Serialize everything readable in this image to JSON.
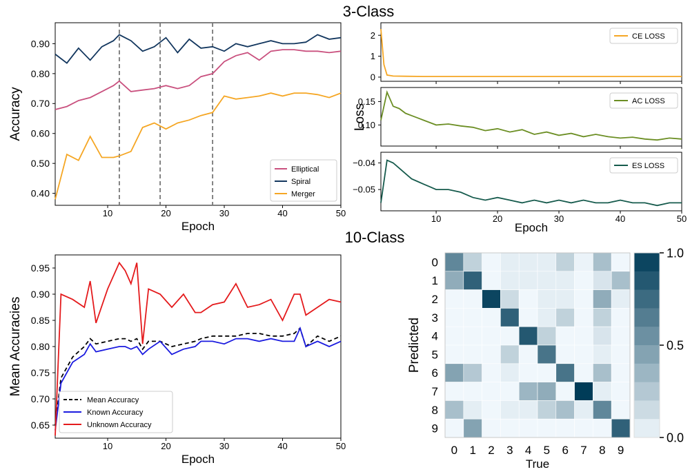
{
  "section_titles": [
    "3-Class",
    "10-Class"
  ],
  "chart_data": [
    {
      "id": "acc3",
      "type": "line",
      "title": "",
      "xlabel": "Epoch",
      "ylabel": "Accuracy",
      "xlim": [
        1,
        50
      ],
      "ylim": [
        0.36,
        0.97
      ],
      "xticks": [
        10,
        20,
        30,
        40,
        50
      ],
      "yticks": [
        0.4,
        0.5,
        0.6,
        0.7,
        0.8,
        0.9
      ],
      "ytick_labels": [
        "0.40",
        "0.50",
        "0.60",
        "0.70",
        "0.80",
        "0.90"
      ],
      "vlines": [
        12,
        19,
        28
      ],
      "legend_position": "lower-right",
      "x": [
        1,
        3,
        5,
        7,
        9,
        11,
        12,
        14,
        16,
        18,
        20,
        22,
        24,
        26,
        28,
        30,
        32,
        34,
        36,
        38,
        40,
        42,
        44,
        46,
        48,
        50
      ],
      "series": [
        {
          "name": "Elliptical",
          "color": "#c9507e",
          "values": [
            0.68,
            0.69,
            0.71,
            0.72,
            0.74,
            0.76,
            0.775,
            0.74,
            0.745,
            0.75,
            0.76,
            0.75,
            0.76,
            0.79,
            0.8,
            0.84,
            0.86,
            0.87,
            0.845,
            0.875,
            0.88,
            0.88,
            0.875,
            0.875,
            0.87,
            0.875
          ]
        },
        {
          "name": "Spiral",
          "color": "#12365e",
          "values": [
            0.865,
            0.835,
            0.885,
            0.845,
            0.89,
            0.91,
            0.93,
            0.91,
            0.875,
            0.89,
            0.92,
            0.87,
            0.915,
            0.885,
            0.89,
            0.875,
            0.9,
            0.89,
            0.9,
            0.91,
            0.9,
            0.9,
            0.905,
            0.93,
            0.915,
            0.92
          ]
        },
        {
          "name": "Merger",
          "color": "#f5a623",
          "values": [
            0.38,
            0.53,
            0.51,
            0.59,
            0.52,
            0.52,
            0.525,
            0.54,
            0.62,
            0.635,
            0.615,
            0.635,
            0.645,
            0.66,
            0.67,
            0.725,
            0.715,
            0.72,
            0.725,
            0.735,
            0.725,
            0.735,
            0.735,
            0.73,
            0.72,
            0.735
          ]
        }
      ]
    },
    {
      "id": "loss3",
      "type": "line",
      "title": "",
      "xlabel": "Epoch",
      "ylabel": "Loss",
      "xlim": [
        1,
        50
      ],
      "xticks": [
        10,
        20,
        30,
        40,
        50
      ],
      "panels": [
        {
          "name": "CE LOSS",
          "color": "#f5a623",
          "ylim": [
            -0.2,
            2.6
          ],
          "yticks": [
            0,
            1,
            2
          ],
          "ytick_labels": [
            "0",
            "1",
            "2"
          ],
          "x": [
            1,
            1.5,
            2,
            3,
            5,
            8,
            10,
            15,
            20,
            25,
            30,
            35,
            40,
            45,
            50
          ],
          "values": [
            2.3,
            0.6,
            0.1,
            0.05,
            0.04,
            0.03,
            0.03,
            0.03,
            0.03,
            0.03,
            0.03,
            0.03,
            0.03,
            0.03,
            0.03
          ]
        },
        {
          "name": "AC LOSS",
          "color": "#6b8e23",
          "ylim": [
            0.055,
            0.18
          ],
          "yticks": [
            0.1,
            0.15
          ],
          "ytick_labels": [
            "0.10",
            "0.15"
          ],
          "x": [
            1,
            2,
            3,
            4,
            5,
            6,
            7,
            8,
            9,
            10,
            12,
            14,
            16,
            18,
            20,
            22,
            24,
            26,
            28,
            30,
            32,
            34,
            36,
            38,
            40,
            42,
            44,
            46,
            48,
            50
          ],
          "values": [
            0.11,
            0.17,
            0.14,
            0.135,
            0.125,
            0.12,
            0.115,
            0.11,
            0.105,
            0.1,
            0.102,
            0.098,
            0.095,
            0.088,
            0.092,
            0.085,
            0.09,
            0.08,
            0.085,
            0.078,
            0.082,
            0.075,
            0.08,
            0.075,
            0.072,
            0.074,
            0.07,
            0.068,
            0.072,
            0.07
          ]
        },
        {
          "name": "ES LOSS",
          "color": "#155a4c",
          "ylim": [
            -0.058,
            -0.036
          ],
          "yticks": [
            -0.05,
            -0.04
          ],
          "ytick_labels": [
            "−0.05",
            "−0.04"
          ],
          "x": [
            1,
            2,
            3,
            4,
            5,
            6,
            7,
            8,
            9,
            10,
            12,
            14,
            16,
            18,
            20,
            22,
            24,
            26,
            28,
            30,
            32,
            34,
            36,
            38,
            40,
            42,
            44,
            46,
            48,
            50
          ],
          "values": [
            -0.055,
            -0.039,
            -0.04,
            -0.042,
            -0.044,
            -0.046,
            -0.047,
            -0.048,
            -0.049,
            -0.05,
            -0.05,
            -0.051,
            -0.053,
            -0.054,
            -0.053,
            -0.054,
            -0.055,
            -0.054,
            -0.055,
            -0.054,
            -0.055,
            -0.054,
            -0.055,
            -0.055,
            -0.054,
            -0.055,
            -0.055,
            -0.056,
            -0.055,
            -0.055
          ]
        }
      ]
    },
    {
      "id": "acc10",
      "type": "line",
      "title": "",
      "xlabel": "Epoch",
      "ylabel": "Mean Accuracies",
      "xlim": [
        1,
        50
      ],
      "ylim": [
        0.625,
        0.975
      ],
      "xticks": [
        10,
        20,
        30,
        40,
        50
      ],
      "yticks": [
        0.65,
        0.7,
        0.75,
        0.8,
        0.85,
        0.9,
        0.95
      ],
      "ytick_labels": [
        "0.65",
        "0.70",
        "0.75",
        "0.80",
        "0.85",
        "0.90",
        "0.95"
      ],
      "legend_position": "lower-left",
      "x": [
        1,
        2,
        4,
        6,
        7,
        8,
        10,
        12,
        13,
        14,
        15,
        16,
        17,
        19,
        21,
        23,
        25,
        26,
        28,
        30,
        32,
        34,
        36,
        38,
        40,
        42,
        43,
        44,
        46,
        48,
        50
      ],
      "series": [
        {
          "name": "Mean Accuracy",
          "color": "#000000",
          "dash": "6,4",
          "values": [
            0.65,
            0.74,
            0.78,
            0.8,
            0.815,
            0.805,
            0.81,
            0.815,
            0.815,
            0.81,
            0.815,
            0.795,
            0.81,
            0.81,
            0.8,
            0.805,
            0.81,
            0.815,
            0.82,
            0.82,
            0.82,
            0.825,
            0.825,
            0.82,
            0.82,
            0.825,
            0.835,
            0.8,
            0.82,
            0.81,
            0.82
          ]
        },
        {
          "name": "Known Accuracy",
          "color": "#1a1adf",
          "values": [
            0.64,
            0.73,
            0.77,
            0.785,
            0.805,
            0.79,
            0.795,
            0.8,
            0.8,
            0.795,
            0.8,
            0.785,
            0.795,
            0.81,
            0.785,
            0.795,
            0.8,
            0.81,
            0.81,
            0.805,
            0.815,
            0.815,
            0.81,
            0.815,
            0.81,
            0.81,
            0.835,
            0.8,
            0.81,
            0.8,
            0.81
          ]
        },
        {
          "name": "Unknown Accuracy",
          "color": "#e41a1c",
          "values": [
            0.63,
            0.9,
            0.89,
            0.875,
            0.925,
            0.845,
            0.91,
            0.96,
            0.945,
            0.92,
            0.96,
            0.805,
            0.91,
            0.9,
            0.875,
            0.9,
            0.865,
            0.865,
            0.88,
            0.885,
            0.92,
            0.875,
            0.88,
            0.89,
            0.85,
            0.9,
            0.9,
            0.86,
            0.875,
            0.89,
            0.885
          ]
        }
      ]
    },
    {
      "id": "confusion10",
      "type": "heatmap",
      "title": "",
      "xlabel": "True",
      "ylabel": "Predicted",
      "categories": [
        "0",
        "1",
        "2",
        "3",
        "4",
        "5",
        "6",
        "7",
        "8",
        "9"
      ],
      "colorbar_ticks": [
        0.0,
        0.5,
        1.0
      ],
      "colorbar_tick_labels": [
        "0.0",
        "0.5",
        "1.0"
      ],
      "matrix": [
        [
          0.6,
          0.2,
          0,
          0.05,
          0.05,
          0.05,
          0.2,
          0.02,
          0.3,
          0
        ],
        [
          0.4,
          0.8,
          0,
          0.05,
          0.05,
          0.05,
          0.05,
          0,
          0.1,
          0.3
        ],
        [
          0,
          0,
          0.95,
          0.15,
          0,
          0.05,
          0.05,
          0,
          0.4,
          0.05
        ],
        [
          0,
          0,
          0,
          0.8,
          0,
          0.05,
          0.2,
          0,
          0.2,
          0
        ],
        [
          0,
          0,
          0,
          0,
          0.85,
          0.2,
          0,
          0,
          0.1,
          0
        ],
        [
          0,
          0,
          0,
          0.2,
          0,
          0.7,
          0,
          0,
          0.05,
          0
        ],
        [
          0.45,
          0.25,
          0,
          0.05,
          0,
          0,
          0.7,
          0,
          0.3,
          0
        ],
        [
          0,
          0,
          0,
          0,
          0.35,
          0.4,
          0,
          1.0,
          0.05,
          0
        ],
        [
          0.3,
          0.05,
          0,
          0.05,
          0.05,
          0.2,
          0.3,
          0.05,
          0.6,
          0
        ],
        [
          0,
          0.45,
          0,
          0,
          0,
          0,
          0,
          0,
          0,
          0.8
        ]
      ]
    }
  ]
}
